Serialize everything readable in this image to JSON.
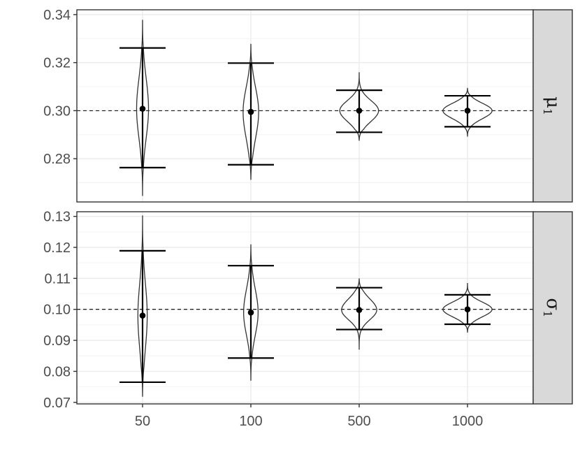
{
  "chart_data": {
    "type": "violin",
    "x": [
      "50",
      "100",
      "500",
      "1000"
    ],
    "xlabel": "",
    "ylabel": "",
    "grid": true,
    "legend": "none",
    "colors": {
      "panel_border": "#333333",
      "grid_major": "#ebebeb",
      "grid_minor": "#f3f3f3",
      "strip_fill": "#d9d9d9",
      "violin_line": "#333333",
      "mark": "#000000",
      "text": "#4d4d4d"
    },
    "panels": [
      {
        "strip": "μ",
        "strip_sub": "1",
        "ylim": [
          0.262,
          0.342
        ],
        "y_ticks": [
          0.28,
          0.3,
          0.32,
          0.34
        ],
        "y_tick_labels": [
          "0.28",
          "0.30",
          "0.32",
          "0.34"
        ],
        "reference": 0.3,
        "groups": [
          {
            "x": "50",
            "mean": 0.3008,
            "lower": 0.2763,
            "upper": 0.3261,
            "min": 0.2645,
            "max": 0.3378,
            "width": 0.23
          },
          {
            "x": "100",
            "mean": 0.2995,
            "lower": 0.2775,
            "upper": 0.3198,
            "min": 0.2712,
            "max": 0.3278,
            "width": 0.3
          },
          {
            "x": "500",
            "mean": 0.3,
            "lower": 0.291,
            "upper": 0.3085,
            "min": 0.2875,
            "max": 0.316,
            "width": 0.75
          },
          {
            "x": "1000",
            "mean": 0.3,
            "lower": 0.2933,
            "upper": 0.3062,
            "min": 0.2892,
            "max": 0.3095,
            "width": 0.95
          }
        ]
      },
      {
        "strip": "σ",
        "strip_sub": "1",
        "ylim": [
          0.0695,
          0.1315
        ],
        "y_ticks": [
          0.07,
          0.08,
          0.09,
          0.1,
          0.11,
          0.12,
          0.13
        ],
        "y_tick_labels": [
          "0.07",
          "0.08",
          "0.09",
          "0.10",
          "0.11",
          "0.12",
          "0.13"
        ],
        "reference": 0.1,
        "groups": [
          {
            "x": "50",
            "mean": 0.098,
            "lower": 0.0765,
            "upper": 0.1189,
            "min": 0.0718,
            "max": 0.1303,
            "width": 0.18
          },
          {
            "x": "100",
            "mean": 0.099,
            "lower": 0.0843,
            "upper": 0.1141,
            "min": 0.077,
            "max": 0.121,
            "width": 0.28
          },
          {
            "x": "500",
            "mean": 0.0998,
            "lower": 0.0935,
            "upper": 0.107,
            "min": 0.087,
            "max": 0.11,
            "width": 0.68
          },
          {
            "x": "1000",
            "mean": 0.1,
            "lower": 0.0952,
            "upper": 0.1047,
            "min": 0.0925,
            "max": 0.1085,
            "width": 0.95
          }
        ]
      }
    ]
  }
}
